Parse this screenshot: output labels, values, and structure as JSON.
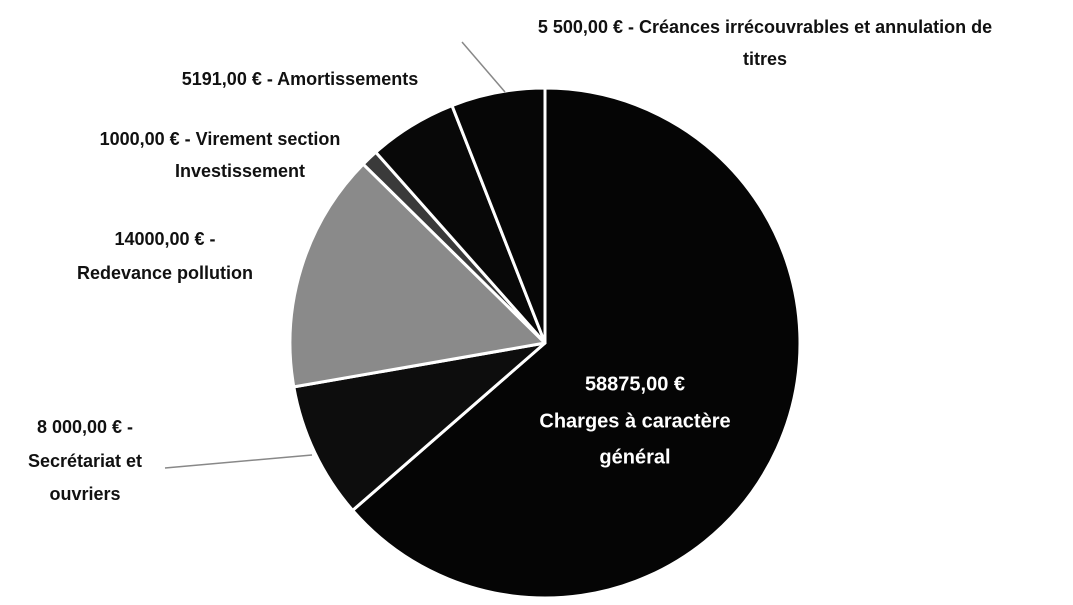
{
  "chart_data": {
    "type": "pie",
    "values": [
      58875,
      8000,
      14000,
      1000,
      5191,
      5500
    ],
    "value_labels": [
      [
        "58875,00 €",
        "Charges à caractère",
        "général"
      ],
      [
        "8 000,00 € -",
        "Secrétariat et",
        "ouvriers"
      ],
      [
        "14000,00 € -",
        "Redevance pollution"
      ],
      [
        "1000,00 € - Virement section",
        "Investissement"
      ],
      [
        "5191,00 €  - Amortissements"
      ],
      [
        "5 500,00 € - Créances irrécouvrables et annulation de",
        "titres"
      ]
    ],
    "colors": [
      "#050505",
      "#0d0d0d",
      "#8a8a8a",
      "#3a3a3a",
      "#080808",
      "#060606"
    ]
  }
}
